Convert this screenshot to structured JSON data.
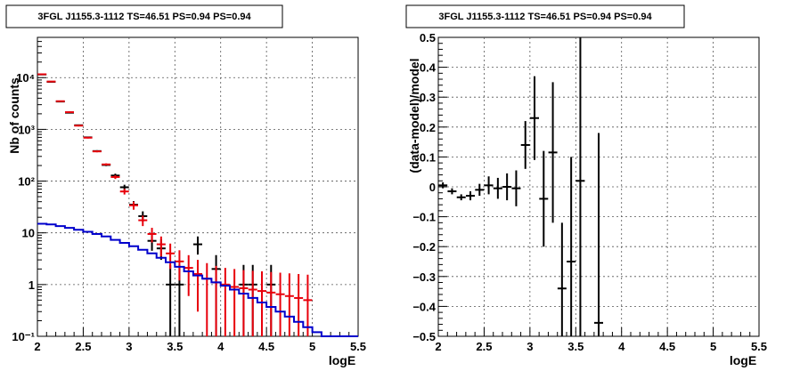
{
  "chart_data": [
    {
      "type": "scatter",
      "title": "3FGL J1155.3-1112 TS=46.51 PS=0.94 PS=0.94",
      "xlabel": "logE",
      "ylabel": "Nb of counts",
      "xlim": [
        2,
        5.5
      ],
      "ylim": [
        0.1,
        60000
      ],
      "yscale": "log",
      "grid": true,
      "xticks": [
        2,
        2.5,
        3,
        3.5,
        4,
        4.5,
        5,
        5.5
      ],
      "xtick_labels": [
        "2",
        "2.5",
        "3",
        "3.5",
        "4",
        "4.5",
        "5",
        "5.5"
      ],
      "yticks": [
        0.1,
        1,
        10,
        100,
        1000,
        10000
      ],
      "ytick_labels": [
        "10⁻¹",
        "1",
        "10",
        "10²",
        "10³",
        "10⁴"
      ],
      "series": [
        {
          "color": "#000000",
          "points": [
            {
              "x": 2.05,
              "y": 11500,
              "lo": 11300,
              "hi": 11700
            },
            {
              "x": 2.15,
              "y": 8300,
              "lo": 8150,
              "hi": 8450
            },
            {
              "x": 2.25,
              "y": 3450,
              "lo": 3350,
              "hi": 3550
            },
            {
              "x": 2.35,
              "y": 2100,
              "lo": 2030,
              "hi": 2170
            },
            {
              "x": 2.45,
              "y": 1200,
              "lo": 1160,
              "hi": 1240
            },
            {
              "x": 2.55,
              "y": 700,
              "lo": 675,
              "hi": 725
            },
            {
              "x": 2.65,
              "y": 380,
              "lo": 365,
              "hi": 395
            },
            {
              "x": 2.75,
              "y": 205,
              "lo": 195,
              "hi": 215
            },
            {
              "x": 2.85,
              "y": 128,
              "lo": 117,
              "hi": 139
            },
            {
              "x": 2.95,
              "y": 76,
              "lo": 67,
              "hi": 85
            },
            {
              "x": 3.05,
              "y": 35,
              "lo": 29,
              "hi": 41
            },
            {
              "x": 3.15,
              "y": 21,
              "lo": 16.5,
              "hi": 26
            },
            {
              "x": 3.25,
              "y": 7,
              "lo": 4.5,
              "hi": 10
            },
            {
              "x": 3.35,
              "y": 5,
              "lo": 3,
              "hi": 7.5
            },
            {
              "x": 3.45,
              "y": 1,
              "lo": 0.1,
              "hi": 2.4
            },
            {
              "x": 3.55,
              "y": 1,
              "lo": 0.1,
              "hi": 2.4
            },
            {
              "x": 3.75,
              "y": 6,
              "lo": 3.8,
              "hi": 8.5
            },
            {
              "x": 3.95,
              "y": 2,
              "lo": 0.1,
              "hi": 3.7
            },
            {
              "x": 4.25,
              "y": 1,
              "lo": 0.1,
              "hi": 2.4
            },
            {
              "x": 4.35,
              "y": 1,
              "lo": 0.1,
              "hi": 2.4
            },
            {
              "x": 4.55,
              "y": 1,
              "lo": 0.1,
              "hi": 2.4
            }
          ]
        },
        {
          "color": "#e8000b",
          "points": [
            {
              "x": 2.05,
              "y": 11600,
              "lo": 11400,
              "hi": 11800
            },
            {
              "x": 2.15,
              "y": 8400,
              "lo": 8250,
              "hi": 8550
            },
            {
              "x": 2.25,
              "y": 3500,
              "lo": 3400,
              "hi": 3600
            },
            {
              "x": 2.35,
              "y": 2150,
              "lo": 2080,
              "hi": 2220
            },
            {
              "x": 2.45,
              "y": 1180,
              "lo": 1140,
              "hi": 1220
            },
            {
              "x": 2.55,
              "y": 690,
              "lo": 665,
              "hi": 715
            },
            {
              "x": 2.65,
              "y": 375,
              "lo": 360,
              "hi": 390
            },
            {
              "x": 2.75,
              "y": 210,
              "lo": 200,
              "hi": 220
            },
            {
              "x": 2.85,
              "y": 120,
              "lo": 110,
              "hi": 130
            },
            {
              "x": 2.95,
              "y": 63,
              "lo": 55,
              "hi": 71
            },
            {
              "x": 3.05,
              "y": 34,
              "lo": 28,
              "hi": 40
            },
            {
              "x": 3.15,
              "y": 17.5,
              "lo": 13.5,
              "hi": 21.5
            },
            {
              "x": 3.25,
              "y": 9.5,
              "lo": 6.5,
              "hi": 12.5
            },
            {
              "x": 3.35,
              "y": 6,
              "lo": 3.5,
              "hi": 8.5
            },
            {
              "x": 3.45,
              "y": 4,
              "lo": 2,
              "hi": 6.2
            },
            {
              "x": 3.55,
              "y": 2.8,
              "lo": 1.2,
              "hi": 4.6
            },
            {
              "x": 3.65,
              "y": 2.1,
              "lo": 0.6,
              "hi": 3.7
            },
            {
              "x": 3.75,
              "y": 1.6,
              "lo": 0.3,
              "hi": 3
            },
            {
              "x": 3.85,
              "y": 1.3,
              "lo": 0.1,
              "hi": 2.6
            },
            {
              "x": 3.95,
              "y": 1.1,
              "lo": 0.1,
              "hi": 2.3
            },
            {
              "x": 4.05,
              "y": 1,
              "lo": 0.1,
              "hi": 2.1
            },
            {
              "x": 4.15,
              "y": 0.9,
              "lo": 0.1,
              "hi": 2
            },
            {
              "x": 4.25,
              "y": 0.85,
              "lo": 0.1,
              "hi": 1.9
            },
            {
              "x": 4.35,
              "y": 0.8,
              "lo": 0.1,
              "hi": 1.85
            },
            {
              "x": 4.45,
              "y": 0.75,
              "lo": 0.1,
              "hi": 1.8
            },
            {
              "x": 4.55,
              "y": 0.7,
              "lo": 0.1,
              "hi": 1.75
            },
            {
              "x": 4.65,
              "y": 0.65,
              "lo": 0.1,
              "hi": 1.7
            },
            {
              "x": 4.75,
              "y": 0.6,
              "lo": 0.1,
              "hi": 1.65
            },
            {
              "x": 4.85,
              "y": 0.55,
              "lo": 0.1,
              "hi": 1.6
            },
            {
              "x": 4.95,
              "y": 0.5,
              "lo": 0.1,
              "hi": 1.55
            }
          ]
        },
        {
          "type": "step",
          "color": "#0000cc",
          "edges": [
            2.0,
            2.1,
            2.2,
            2.3,
            2.4,
            2.5,
            2.6,
            2.7,
            2.8,
            2.9,
            3.0,
            3.1,
            3.2,
            3.3,
            3.4,
            3.5,
            3.6,
            3.7,
            3.8,
            3.9,
            4.0,
            4.1,
            4.2,
            4.3,
            4.4,
            4.5,
            4.6,
            4.7,
            4.8,
            4.9,
            5.0,
            5.1,
            5.5
          ],
          "values": [
            15,
            14.5,
            13.5,
            12.5,
            11.5,
            10.5,
            9.5,
            8.5,
            7.3,
            6.4,
            5.5,
            4.7,
            4,
            3.3,
            2.7,
            2.2,
            1.8,
            1.5,
            1.3,
            1.1,
            0.95,
            0.8,
            0.67,
            0.55,
            0.45,
            0.37,
            0.3,
            0.24,
            0.19,
            0.15,
            0.12,
            0.1
          ]
        }
      ]
    },
    {
      "type": "scatter",
      "title": "3FGL J1155.3-1112 TS=46.51 PS=0.94 PS=0.94",
      "xlabel": "logE",
      "ylabel": "(data-model)/model",
      "xlim": [
        2,
        5.5
      ],
      "ylim": [
        -0.5,
        0.5
      ],
      "grid": true,
      "xticks": [
        2,
        2.5,
        3,
        3.5,
        4,
        4.5,
        5,
        5.5
      ],
      "xtick_labels": [
        "2",
        "2.5",
        "3",
        "3.5",
        "4",
        "4.5",
        "5",
        "5.5"
      ],
      "yticks": [
        -0.5,
        -0.4,
        -0.3,
        -0.2,
        -0.1,
        0,
        0.1,
        0.2,
        0.3,
        0.4,
        0.5
      ],
      "ytick_labels": [
        "−0.5",
        "−0.4",
        "−0.3",
        "−0.2",
        "−0.1",
        "0",
        "0.1",
        "0.2",
        "0.3",
        "0.4",
        "0.5"
      ],
      "series": [
        {
          "color": "#000000",
          "points": [
            {
              "x": 2.05,
              "y": 0.005,
              "lo": -0.005,
              "hi": 0.015
            },
            {
              "x": 2.15,
              "y": -0.015,
              "lo": -0.025,
              "hi": -0.005
            },
            {
              "x": 2.25,
              "y": -0.035,
              "lo": -0.045,
              "hi": -0.025
            },
            {
              "x": 2.35,
              "y": -0.03,
              "lo": -0.045,
              "hi": -0.015
            },
            {
              "x": 2.45,
              "y": -0.01,
              "lo": -0.03,
              "hi": 0.01
            },
            {
              "x": 2.55,
              "y": 0.005,
              "lo": -0.025,
              "hi": 0.035
            },
            {
              "x": 2.65,
              "y": -0.005,
              "lo": -0.04,
              "hi": 0.03
            },
            {
              "x": 2.75,
              "y": 0,
              "lo": -0.045,
              "hi": 0.045
            },
            {
              "x": 2.85,
              "y": -0.005,
              "lo": -0.065,
              "hi": 0.055
            },
            {
              "x": 2.95,
              "y": 0.14,
              "lo": 0.06,
              "hi": 0.22
            },
            {
              "x": 3.05,
              "y": 0.23,
              "lo": 0.09,
              "hi": 0.37
            },
            {
              "x": 3.15,
              "y": -0.04,
              "lo": -0.2,
              "hi": 0.12
            },
            {
              "x": 3.25,
              "y": 0.115,
              "lo": -0.12,
              "hi": 0.35
            },
            {
              "x": 3.35,
              "y": -0.34,
              "lo": -0.5,
              "hi": -0.12
            },
            {
              "x": 3.45,
              "y": -0.25,
              "lo": -0.5,
              "hi": 0.1
            },
            {
              "x": 3.55,
              "y": 0.02,
              "lo": -0.5,
              "hi": 0.5
            },
            {
              "x": 3.75,
              "y": -0.455,
              "lo": -0.5,
              "hi": 0.18
            }
          ]
        }
      ]
    }
  ]
}
